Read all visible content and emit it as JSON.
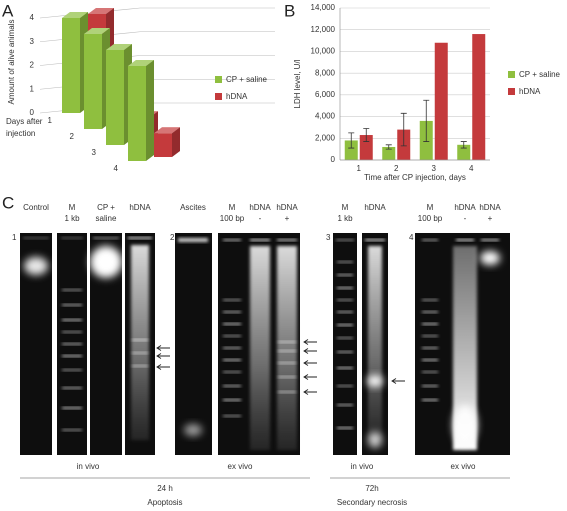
{
  "chart_data": [
    {
      "type": "bar3d",
      "label": "A",
      "y_label": "Amount of alive animals",
      "x_label": [
        "Days after",
        "injection"
      ],
      "categories": [
        "1",
        "2",
        "3",
        "4"
      ],
      "series": [
        {
          "name": "CP + saline",
          "color": "#8fbf3f",
          "values": [
            4,
            4,
            4,
            4
          ]
        },
        {
          "name": "hDNA",
          "color": "#c43a3c",
          "values": [
            4,
            1,
            1,
            1
          ]
        }
      ],
      "ylim": [
        0,
        4
      ],
      "yticks": [
        0,
        1,
        2,
        3,
        4
      ],
      "grid": true,
      "legend": "right"
    },
    {
      "type": "bar",
      "label": "B",
      "y_label": "LDH level, U/l",
      "x_label": "Time after CP injection, days",
      "categories": [
        "1",
        "2",
        "3",
        "4"
      ],
      "series": [
        {
          "name": "CP + saline",
          "color": "#8fbf3f",
          "values": [
            1800,
            1200,
            3600,
            1400
          ],
          "errors": [
            700,
            200,
            1900,
            300
          ]
        },
        {
          "name": "hDNA",
          "color": "#c43a3c",
          "values": [
            2300,
            2800,
            10800,
            11600
          ],
          "errors": [
            600,
            1500,
            null,
            null
          ]
        }
      ],
      "ylim": [
        0,
        14000
      ],
      "yticks": [
        0,
        {
          "value": 2000,
          "label": "2,000"
        },
        {
          "value": 4000,
          "label": "4,000"
        },
        {
          "value": 6000,
          "label": "6,000"
        },
        {
          "value": 8000,
          "label": "8,000"
        },
        {
          "value": 10000,
          "label": "10,000"
        },
        {
          "value": 12000,
          "label": "12,000"
        },
        {
          "value": 14000,
          "label": "14,000"
        }
      ],
      "grid": true,
      "legend": "right"
    }
  ],
  "gel_panel": {
    "label": "C",
    "gels": [
      {
        "number": "1",
        "lanes": [
          [
            "Control"
          ],
          [
            "M",
            "1 kb"
          ],
          [
            "CP +",
            "saline"
          ],
          [
            "hDNA"
          ]
        ],
        "condition": "in vivo"
      },
      {
        "number": "2",
        "lanes": [
          [
            "Ascites"
          ],
          [
            "M",
            "100 bp"
          ],
          [
            "hDNA",
            "-"
          ],
          [
            "hDNA",
            "+"
          ]
        ],
        "condition": "ex vivo"
      },
      {
        "number": "3",
        "lanes": [
          [
            "M",
            "1 kb"
          ],
          [
            "hDNA"
          ]
        ],
        "condition": "in vivo"
      },
      {
        "number": "4",
        "lanes": [
          [
            "M",
            "100 bp"
          ],
          [
            "hDNA",
            "-"
          ],
          [
            "hDNA",
            "+"
          ]
        ],
        "condition": "ex vivo"
      }
    ],
    "groups": [
      {
        "time": "24 h",
        "process": "Apoptosis"
      },
      {
        "time": "72h",
        "process": "Secondary necrosis"
      }
    ]
  }
}
